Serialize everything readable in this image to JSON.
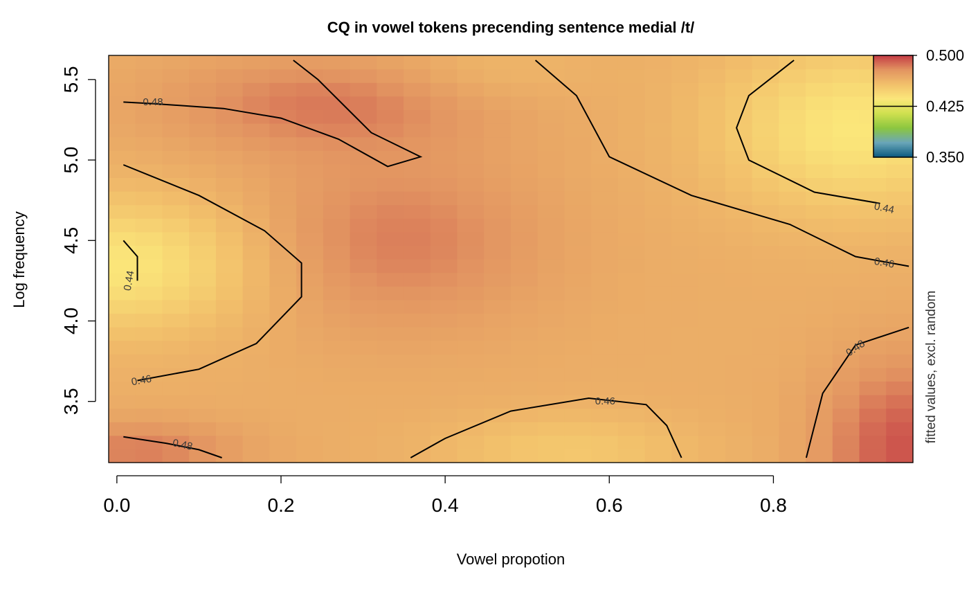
{
  "chart_data": {
    "type": "heatmap",
    "title": "CQ in vowel tokens precending sentence medial /t/",
    "xlabel": "Vowel propotion",
    "ylabel": "Log frequency",
    "colorbar_label": "fitted values, excl. random",
    "xlim": [
      -0.01,
      0.97
    ],
    "ylim": [
      3.12,
      5.65
    ],
    "x_ticks": [
      {
        "value": 0.0,
        "label": "0.0"
      },
      {
        "value": 0.2,
        "label": "0.2"
      },
      {
        "value": 0.4,
        "label": "0.4"
      },
      {
        "value": 0.6,
        "label": "0.6"
      },
      {
        "value": 0.8,
        "label": "0.8"
      }
    ],
    "y_ticks": [
      {
        "value": 3.5,
        "label": "3.5"
      },
      {
        "value": 4.0,
        "label": "4.0"
      },
      {
        "value": 4.5,
        "label": "4.5"
      },
      {
        "value": 5.0,
        "label": "5.0"
      },
      {
        "value": 5.5,
        "label": "5.5"
      }
    ],
    "color_scale": {
      "min": 0.35,
      "max": 0.5,
      "stops": [
        "#0b5a7f",
        "#6aa6b8",
        "#8cc63f",
        "#cfe04f",
        "#fbe77a",
        "#f2c06b",
        "#e29461",
        "#c43c45"
      ],
      "ticks": [
        {
          "value": 0.5,
          "label": "0.500"
        },
        {
          "value": 0.425,
          "label": "0.425"
        },
        {
          "value": 0.35,
          "label": "0.350"
        }
      ],
      "marker_value": 0.425
    },
    "contours": [
      {
        "level": 0.48,
        "label": "0.48",
        "segments": [
          [
            [
              0.008,
              5.36
            ],
            [
              0.045,
              5.35
            ],
            [
              0.13,
              5.32
            ],
            [
              0.2,
              5.26
            ],
            [
              0.27,
              5.13
            ],
            [
              0.33,
              4.96
            ],
            [
              0.37,
              5.02
            ],
            [
              0.31,
              5.17
            ],
            [
              0.245,
              5.5
            ],
            [
              0.215,
              5.62
            ]
          ],
          [
            [
              0.008,
              3.28
            ],
            [
              0.06,
              3.24
            ],
            [
              0.1,
              3.2
            ],
            [
              0.128,
              3.15
            ]
          ],
          [
            [
              0.84,
              3.15
            ],
            [
              0.86,
              3.55
            ],
            [
              0.9,
              3.85
            ],
            [
              0.965,
              3.96
            ]
          ]
        ]
      },
      {
        "level": 0.46,
        "label": "0.46",
        "segments": [
          [
            [
              0.008,
              4.97
            ],
            [
              0.1,
              4.78
            ],
            [
              0.18,
              4.56
            ],
            [
              0.225,
              4.36
            ],
            [
              0.225,
              4.15
            ],
            [
              0.17,
              3.86
            ],
            [
              0.1,
              3.7
            ],
            [
              0.025,
              3.63
            ]
          ],
          [
            [
              0.358,
              3.15
            ],
            [
              0.4,
              3.27
            ],
            [
              0.48,
              3.44
            ],
            [
              0.575,
              3.52
            ],
            [
              0.645,
              3.48
            ],
            [
              0.67,
              3.35
            ],
            [
              0.688,
              3.15
            ]
          ],
          [
            [
              0.51,
              5.62
            ],
            [
              0.56,
              5.4
            ],
            [
              0.6,
              5.02
            ],
            [
              0.7,
              4.78
            ],
            [
              0.82,
              4.6
            ],
            [
              0.9,
              4.4
            ],
            [
              0.965,
              4.34
            ]
          ]
        ]
      },
      {
        "level": 0.44,
        "label": "0.44",
        "segments": [
          [
            [
              0.008,
              4.5
            ],
            [
              0.025,
              4.4
            ],
            [
              0.025,
              4.25
            ]
          ],
          [
            [
              0.825,
              5.62
            ],
            [
              0.77,
              5.4
            ],
            [
              0.755,
              5.2
            ],
            [
              0.77,
              5.0
            ],
            [
              0.85,
              4.8
            ],
            [
              0.93,
              4.73
            ]
          ]
        ]
      }
    ],
    "contour_labels": [
      {
        "value": 0.48,
        "text": "0.48",
        "x": 0.044,
        "y": 5.36,
        "angle": 0
      },
      {
        "value": 0.48,
        "text": "0.48",
        "x": 0.08,
        "y": 3.23,
        "angle": 12
      },
      {
        "value": 0.48,
        "text": "0.48",
        "x": 0.9,
        "y": 3.83,
        "angle": -35
      },
      {
        "value": 0.46,
        "text": "0.46",
        "x": 0.03,
        "y": 3.63,
        "angle": -10
      },
      {
        "value": 0.46,
        "text": "0.46",
        "x": 0.595,
        "y": 3.5,
        "angle": 0
      },
      {
        "value": 0.46,
        "text": "0.46",
        "x": 0.935,
        "y": 4.36,
        "angle": 10
      },
      {
        "value": 0.44,
        "text": "0.44",
        "x": 0.015,
        "y": 4.25,
        "angle": -80
      },
      {
        "value": 0.44,
        "text": "0.44",
        "x": 0.935,
        "y": 4.7,
        "angle": 12
      }
    ],
    "grid": false,
    "legend": "top-right"
  }
}
